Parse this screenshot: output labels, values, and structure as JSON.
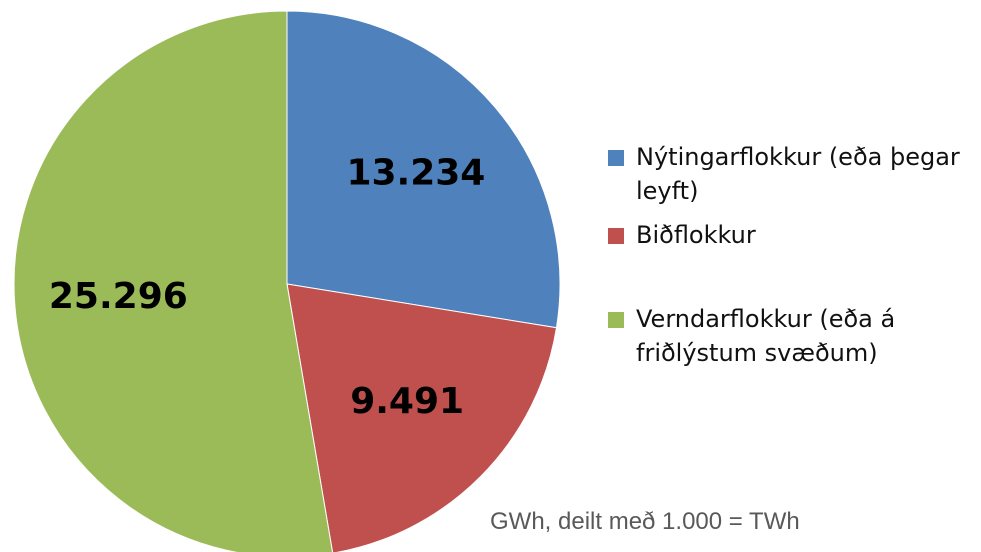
{
  "chart_data": {
    "type": "pie",
    "categories": [
      "Nýtingarflokkur (eða þegar leyft)",
      "Biðflokkur",
      "Verndarflokkur (eða á friðlýstum svæðum)"
    ],
    "values": [
      13.234,
      9.491,
      25.296
    ],
    "colors": [
      "#4f81bd",
      "#c0504d",
      "#9bbb59"
    ],
    "note": "GWh, deilt með 1.000 = TWh"
  }
}
